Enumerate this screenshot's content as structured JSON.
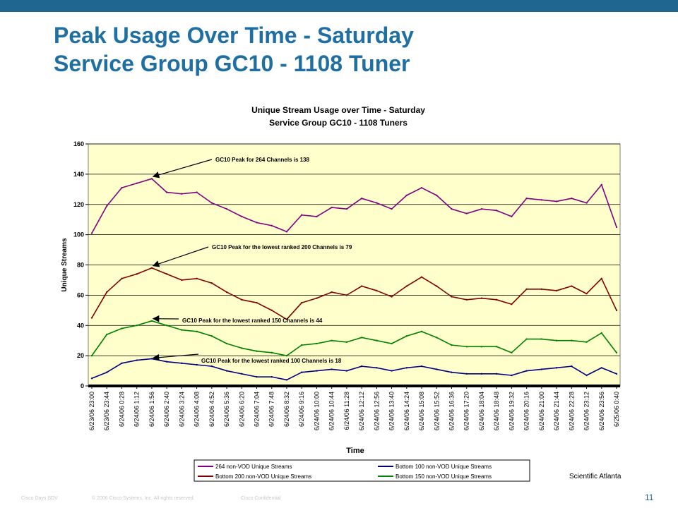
{
  "slide": {
    "title_line1": "Peak Usage Over Time - Saturday",
    "title_line2": "Service Group GC10 -  1108 Tuner",
    "footer_left": "Cisco Days SDV",
    "footer_copyright": "© 2006 Cisco Systems, Inc. All rights reserved.",
    "footer_confidential": "Cisco Confidential",
    "page_number": "11",
    "vendor": "Scientific Atlanta",
    "brand_color": "#1f6791",
    "title_color": "#1f6fa3"
  },
  "chart_data": {
    "type": "line",
    "title": "Unique Stream Usage over Time - Saturday",
    "subtitle": "Service Group GC10 - 1108 Tuners",
    "xlabel": "Time",
    "ylabel": "Unique Streams",
    "ylim": [
      0,
      160
    ],
    "yticks": [
      0,
      20,
      40,
      60,
      80,
      100,
      120,
      140,
      160
    ],
    "grid": true,
    "plot_background": "#ffffcc",
    "legend_position": "bottom",
    "categories": [
      "6/23/06 23:00",
      "6/23/06 23:44",
      "6/24/06 0:28",
      "6/24/06 1:12",
      "6/24/06 1:56",
      "6/24/06 2:40",
      "6/24/06 3:24",
      "6/24/06 4:08",
      "6/24/06 4:52",
      "6/24/06 5:36",
      "6/24/06 6:20",
      "6/24/06 7:04",
      "6/24/06 7:48",
      "6/24/06 8:32",
      "6/24/06 9:16",
      "6/24/06 10:00",
      "6/24/06 10:44",
      "6/24/06 11:28",
      "6/24/06 12:12",
      "6/24/06 12:56",
      "6/24/06 13:40",
      "6/24/06 14:24",
      "6/24/06 15:08",
      "6/24/06 15:52",
      "6/24/06 16:36",
      "6/24/06 17:20",
      "6/24/06 18:04",
      "6/24/06 18:48",
      "6/24/06 19:32",
      "6/24/06 20:16",
      "6/24/06 21:00",
      "6/24/06 21:44",
      "6/24/06 22:28",
      "6/24/06 23:12",
      "6/24/06 23:56",
      "6/25/06 0:40"
    ],
    "series": [
      {
        "name": "264 non-VOD Unique Streams",
        "color": "#800080",
        "values": [
          101,
          119,
          131,
          134,
          137,
          128,
          127,
          128,
          121,
          117,
          112,
          108,
          106,
          102,
          113,
          112,
          118,
          117,
          124,
          121,
          117,
          126,
          131,
          126,
          117,
          114,
          117,
          116,
          112,
          124,
          123,
          122,
          124,
          121,
          133,
          105
        ]
      },
      {
        "name": "Bottom 200 non-VOD Unique Streams",
        "color": "#800000",
        "values": [
          45,
          62,
          71,
          74,
          78,
          74,
          70,
          71,
          68,
          62,
          57,
          55,
          50,
          44,
          55,
          58,
          62,
          60,
          66,
          63,
          59,
          66,
          72,
          66,
          59,
          57,
          58,
          57,
          54,
          64,
          64,
          63,
          66,
          61,
          71,
          50
        ]
      },
      {
        "name": "Bottom 150 non-VOD Unique Streams",
        "color": "#008000",
        "values": [
          20,
          34,
          38,
          40,
          43,
          40,
          37,
          36,
          33,
          28,
          25,
          23,
          22,
          20,
          27,
          28,
          30,
          29,
          32,
          30,
          28,
          33,
          36,
          32,
          27,
          26,
          26,
          26,
          22,
          31,
          31,
          30,
          30,
          29,
          35,
          22
        ]
      },
      {
        "name": "Bottom 100 non-VOD Unique Streams",
        "color": "#000080",
        "values": [
          5,
          9,
          15,
          17,
          18,
          16,
          15,
          14,
          13,
          10,
          8,
          6,
          6,
          4,
          9,
          10,
          11,
          10,
          13,
          12,
          10,
          12,
          13,
          11,
          9,
          8,
          8,
          8,
          7,
          10,
          11,
          12,
          13,
          7,
          12,
          8
        ]
      }
    ],
    "annotations": [
      {
        "text": "GC10 Peak for 264 Channels is 138",
        "x": "6/24/06 1:56",
        "y": 138
      },
      {
        "text": "GC10 Peak for the lowest ranked 200 Channels is 79",
        "x": "6/24/06 1:56",
        "y": 79
      },
      {
        "text": "GC10 Peak for the lowest ranked 150 Channels is 44",
        "x": "6/24/06 1:56",
        "y": 44
      },
      {
        "text": "GC10 Peak for the lowest ranked 100 Channels is 18",
        "x": "6/24/06 1:56",
        "y": 18
      }
    ]
  }
}
